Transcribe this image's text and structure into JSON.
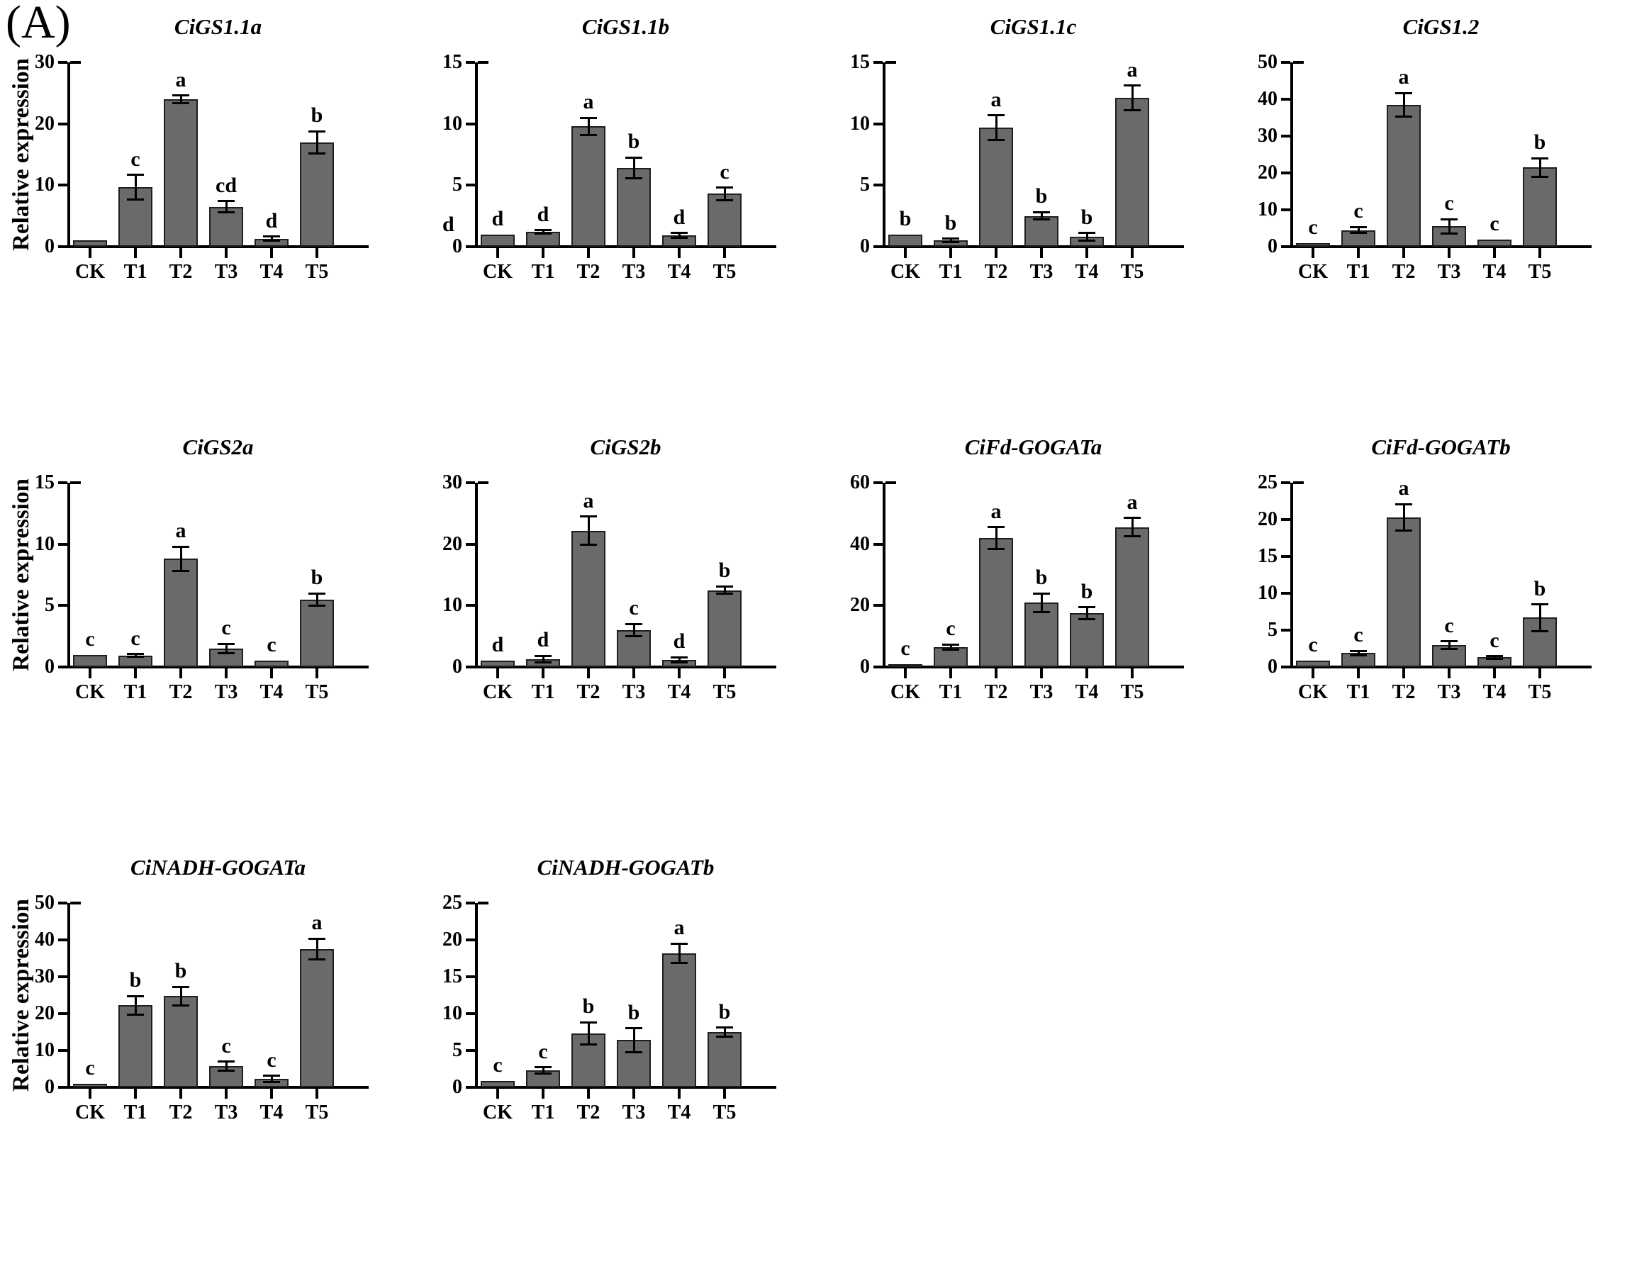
{
  "panel_label": "(A)",
  "colors": {
    "bar_fill": "#6a6a6a",
    "bar_edge": "#1f1f1f",
    "axis": "#000000",
    "background": "#ffffff"
  },
  "chart_data": [
    {
      "type": "bar",
      "title": "CiGS1.1a",
      "ylabel": "Relative expression",
      "categories": [
        "CK",
        "T1",
        "T2",
        "T3",
        "T4",
        "T5"
      ],
      "values": [
        1.0,
        9.7,
        24.0,
        6.5,
        1.3,
        17.0
      ],
      "errors": [
        0,
        2.0,
        0.6,
        0.9,
        0.35,
        1.8
      ],
      "sig_letters": [
        "",
        "c",
        "a",
        "cd",
        "d",
        "b"
      ],
      "yticks": [
        0,
        10,
        20,
        30
      ],
      "ylim": [
        0,
        30
      ]
    },
    {
      "type": "bar",
      "title": "CiGS1.1b",
      "ylabel": "",
      "categories": [
        "CK",
        "T1",
        "T2",
        "T3",
        "T4",
        "T5"
      ],
      "values": [
        1.0,
        1.2,
        9.8,
        6.4,
        0.9,
        4.3
      ],
      "errors": [
        0,
        0.15,
        0.7,
        0.85,
        0.2,
        0.5
      ],
      "sig_letters": [
        "d",
        "d",
        "a",
        "b",
        "d",
        "c"
      ],
      "yticks": [
        0,
        5,
        10,
        15
      ],
      "ylim": [
        0,
        15
      ],
      "stray_letter": "d"
    },
    {
      "type": "bar",
      "title": "CiGS1.1c",
      "ylabel": "",
      "categories": [
        "CK",
        "T1",
        "T2",
        "T3",
        "T4",
        "T5"
      ],
      "values": [
        1.0,
        0.5,
        9.7,
        2.5,
        0.8,
        12.1
      ],
      "errors": [
        0,
        0.15,
        1.0,
        0.3,
        0.3,
        1.0
      ],
      "sig_letters": [
        "b",
        "b",
        "a",
        "b",
        "b",
        "a"
      ],
      "yticks": [
        0,
        5,
        10,
        15
      ],
      "ylim": [
        0,
        15
      ]
    },
    {
      "type": "bar",
      "title": "CiGS1.2",
      "ylabel": "",
      "categories": [
        "CK",
        "T1",
        "T2",
        "T3",
        "T4",
        "T5"
      ],
      "values": [
        1.0,
        4.5,
        38.5,
        5.5,
        2.0,
        21.5
      ],
      "errors": [
        0,
        0.8,
        3.2,
        2.0,
        0,
        2.5
      ],
      "sig_letters": [
        "c",
        "c",
        "a",
        "c",
        "c",
        "b"
      ],
      "yticks": [
        0,
        10,
        20,
        30,
        40,
        50
      ],
      "ylim": [
        0,
        50
      ]
    },
    {
      "type": "bar",
      "title": "CiGS2a",
      "ylabel": "Relative expression",
      "categories": [
        "CK",
        "T1",
        "T2",
        "T3",
        "T4",
        "T5"
      ],
      "values": [
        1.0,
        0.95,
        8.8,
        1.5,
        0.5,
        5.5
      ],
      "errors": [
        0,
        0.1,
        1.0,
        0.4,
        0,
        0.5
      ],
      "sig_letters": [
        "c",
        "c",
        "a",
        "c",
        "c",
        "b"
      ],
      "yticks": [
        0,
        5,
        10,
        15
      ],
      "ylim": [
        0,
        15
      ]
    },
    {
      "type": "bar",
      "title": "CiGS2b",
      "ylabel": "",
      "categories": [
        "CK",
        "T1",
        "T2",
        "T3",
        "T4",
        "T5"
      ],
      "values": [
        1.0,
        1.3,
        22.2,
        6.0,
        1.2,
        12.5
      ],
      "errors": [
        0,
        0.5,
        2.3,
        1.0,
        0.4,
        0.6
      ],
      "sig_letters": [
        "d",
        "d",
        "a",
        "c",
        "d",
        "b"
      ],
      "yticks": [
        0,
        10,
        20,
        30
      ],
      "ylim": [
        0,
        30
      ]
    },
    {
      "type": "bar",
      "title": "CiFd-GOGATa",
      "ylabel": "",
      "categories": [
        "CK",
        "T1",
        "T2",
        "T3",
        "T4",
        "T5"
      ],
      "values": [
        1.0,
        6.5,
        42.0,
        21.0,
        17.5,
        45.5
      ],
      "errors": [
        0,
        0.8,
        3.5,
        3.0,
        2.0,
        3.0
      ],
      "sig_letters": [
        "c",
        "c",
        "a",
        "b",
        "b",
        "a"
      ],
      "yticks": [
        0,
        20,
        40,
        60
      ],
      "ylim": [
        0,
        60
      ]
    },
    {
      "type": "bar",
      "title": "CiFd-GOGATb",
      "ylabel": "",
      "categories": [
        "CK",
        "T1",
        "T2",
        "T3",
        "T4",
        "T5"
      ],
      "values": [
        0.9,
        1.9,
        20.3,
        3.0,
        1.3,
        6.7
      ],
      "errors": [
        0,
        0.3,
        1.8,
        0.5,
        0.15,
        1.8
      ],
      "sig_letters": [
        "c",
        "c",
        "a",
        "c",
        "c",
        "b"
      ],
      "yticks": [
        0,
        5,
        10,
        15,
        20,
        25
      ],
      "ylim": [
        0,
        25
      ]
    },
    {
      "type": "bar",
      "title": "CiNADH-GOGATa",
      "ylabel": "Relative expression",
      "categories": [
        "CK",
        "T1",
        "T2",
        "T3",
        "T4",
        "T5"
      ],
      "values": [
        1.0,
        22.3,
        24.8,
        5.8,
        2.3,
        37.5
      ],
      "errors": [
        0,
        2.5,
        2.5,
        1.2,
        0.8,
        2.8
      ],
      "sig_letters": [
        "c",
        "b",
        "b",
        "c",
        "c",
        "a"
      ],
      "yticks": [
        0,
        10,
        20,
        30,
        40,
        50
      ],
      "ylim": [
        0,
        50
      ]
    },
    {
      "type": "bar",
      "title": "CiNADH-GOGATb",
      "ylabel": "",
      "categories": [
        "CK",
        "T1",
        "T2",
        "T3",
        "T4",
        "T5"
      ],
      "values": [
        0.9,
        2.3,
        7.3,
        6.4,
        18.2,
        7.5
      ],
      "errors": [
        0,
        0.4,
        1.5,
        1.6,
        1.3,
        0.6
      ],
      "sig_letters": [
        "c",
        "c",
        "b",
        "b",
        "a",
        "b"
      ],
      "yticks": [
        0,
        5,
        10,
        15,
        20,
        25
      ],
      "ylim": [
        0,
        25
      ]
    }
  ]
}
